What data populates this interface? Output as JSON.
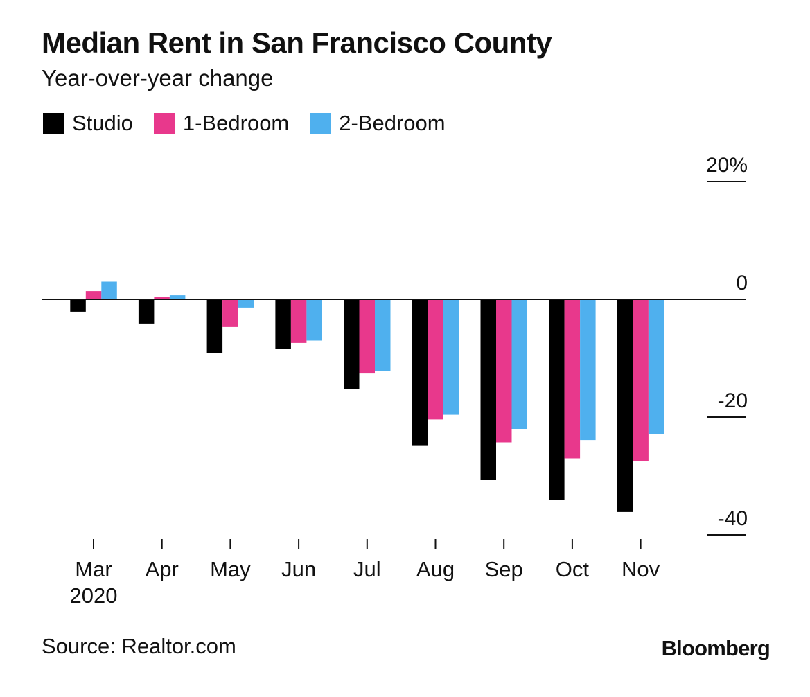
{
  "header": {
    "title": "Median Rent in San Francisco County",
    "subtitle": "Year-over-year change"
  },
  "footer": {
    "source": "Source: Realtor.com",
    "brand": "Bloomberg"
  },
  "colors": {
    "studio": "#000000",
    "one_bedroom": "#e8388c",
    "two_bedroom": "#4fb0ee",
    "axis": "#111111"
  },
  "chart_data": {
    "type": "bar",
    "title": "Median Rent in San Francisco County",
    "subtitle": "Year-over-year change",
    "categories": [
      "Mar",
      "Apr",
      "May",
      "Jun",
      "Jul",
      "Aug",
      "Sep",
      "Oct",
      "Nov"
    ],
    "category_sublabels": [
      "2020",
      "",
      "",
      "",
      "",
      "",
      "",
      "",
      ""
    ],
    "series": [
      {
        "name": "Studio",
        "color": "#000000",
        "values": [
          -2.1,
          -4.1,
          -9.1,
          -8.4,
          -15.3,
          -24.9,
          -30.7,
          -34.0,
          -36.1
        ]
      },
      {
        "name": "1-Bedroom",
        "color": "#e8388c",
        "values": [
          1.4,
          0.4,
          -4.7,
          -7.4,
          -12.6,
          -20.4,
          -24.3,
          -27.0,
          -27.5
        ]
      },
      {
        "name": "2-Bedroom",
        "color": "#4fb0ee",
        "values": [
          3.0,
          0.7,
          -1.4,
          -7.0,
          -12.2,
          -19.6,
          -22.0,
          -23.9,
          -22.9
        ]
      }
    ],
    "y_ticks": [
      {
        "value": 20,
        "label": "20%"
      },
      {
        "value": 0,
        "label": "0"
      },
      {
        "value": -20,
        "label": "-20"
      },
      {
        "value": -40,
        "label": "-40"
      }
    ],
    "ylim": [
      -40,
      20
    ],
    "axis_position": "right",
    "legend_position": "top-left",
    "grid": false
  }
}
